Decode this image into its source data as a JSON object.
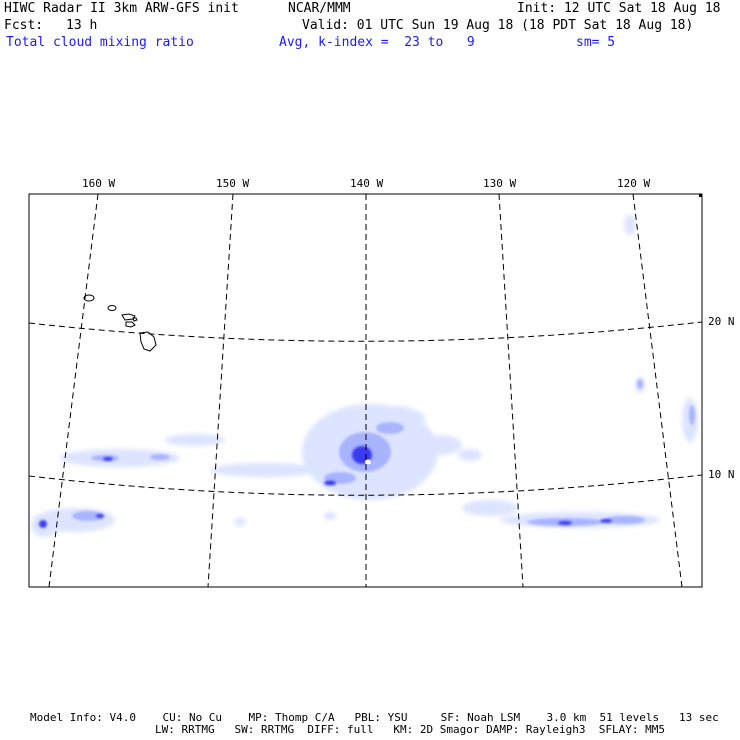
{
  "header": {
    "title": "HIWC Radar II 3km ARW-GFS init",
    "org": "NCAR/MMM",
    "init": "Init: 12 UTC Sat 18 Aug 18",
    "fcst_label": "Fcst:",
    "fcst_value": "13 h",
    "valid": "Valid: 01 UTC Sun 19 Aug 18 (18 PDT Sat 18 Aug 18)",
    "field": "Total cloud mixing ratio",
    "avg": "Avg, k-index =  23 to   9",
    "sm": "sm= 5"
  },
  "map": {
    "lon_labels": [
      "160 W",
      "150 W",
      "140 W",
      "130 W",
      "120 W"
    ],
    "lat_labels": [
      "20 N",
      "10 N"
    ],
    "colors": {
      "frame": "#000000",
      "grid": "#000000",
      "cloud_light": "#dde4ff",
      "cloud_mid": "#9aa8ff",
      "cloud_dark": "#3a3aee"
    }
  },
  "footer": {
    "line1": "Model Info: V4.0    CU: No Cu    MP: Thomp C/A   PBL: YSU     SF: Noah LSM    3.0 km  51 levels   13 sec",
    "line2": "LW: RRTMG   SW: RRTMG  DIFF: full   KM: 2D Smagor DAMP: Rayleigh3  SFLAY: MM5"
  }
}
